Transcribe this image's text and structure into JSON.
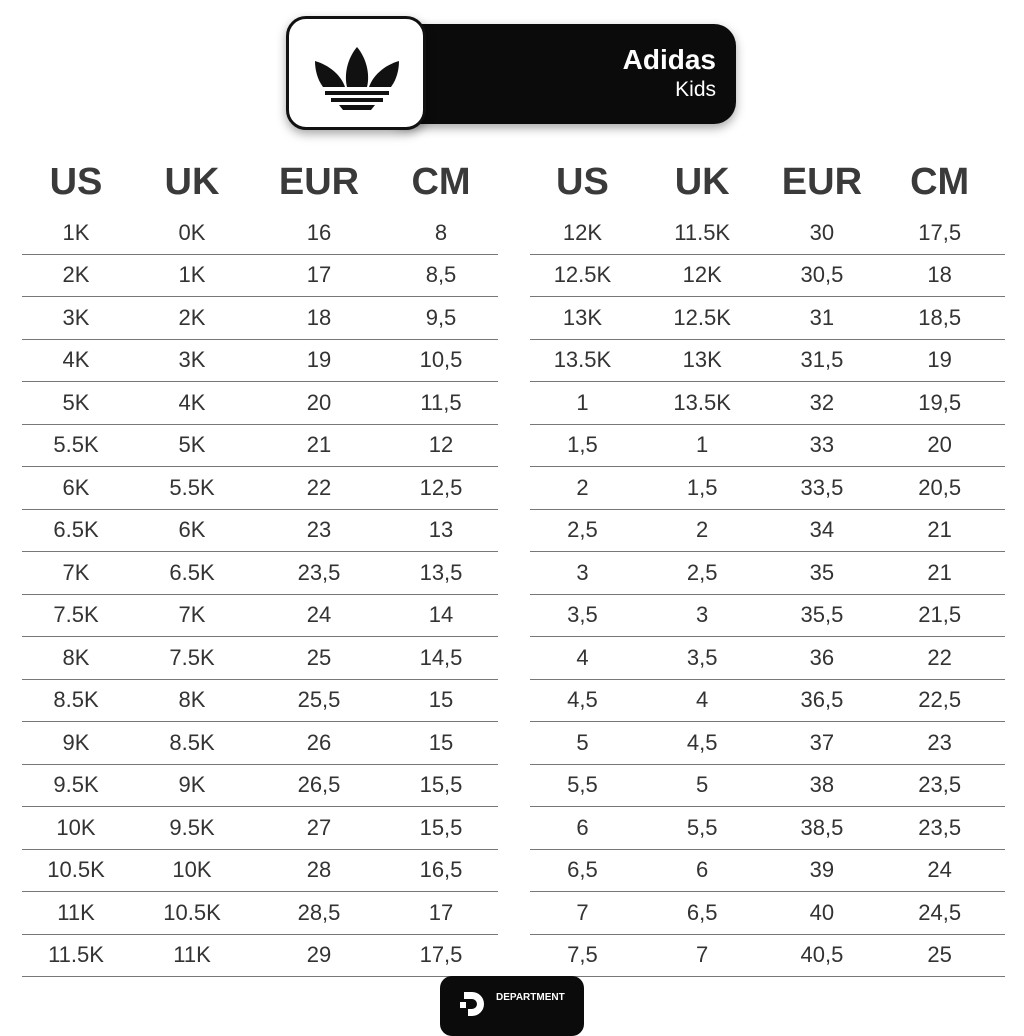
{
  "header": {
    "brand": "Adidas",
    "subtitle": "Kids",
    "logo": "adidas-trefoil-icon"
  },
  "columns": [
    "US",
    "UK",
    "EUR",
    "CM"
  ],
  "left_table": [
    [
      "1K",
      "0K",
      "16",
      "8"
    ],
    [
      "2K",
      "1K",
      "17",
      "8,5"
    ],
    [
      "3K",
      "2K",
      "18",
      "9,5"
    ],
    [
      "4K",
      "3K",
      "19",
      "10,5"
    ],
    [
      "5K",
      "4K",
      "20",
      "11,5"
    ],
    [
      "5.5K",
      "5K",
      "21",
      "12"
    ],
    [
      "6K",
      "5.5K",
      "22",
      "12,5"
    ],
    [
      "6.5K",
      "6K",
      "23",
      "13"
    ],
    [
      "7K",
      "6.5K",
      "23,5",
      "13,5"
    ],
    [
      "7.5K",
      "7K",
      "24",
      "14"
    ],
    [
      "8K",
      "7.5K",
      "25",
      "14,5"
    ],
    [
      "8.5K",
      "8K",
      "25,5",
      "15"
    ],
    [
      "9K",
      "8.5K",
      "26",
      "15"
    ],
    [
      "9.5K",
      "9K",
      "26,5",
      "15,5"
    ],
    [
      "10K",
      "9.5K",
      "27",
      "15,5"
    ],
    [
      "10.5K",
      "10K",
      "28",
      "16,5"
    ],
    [
      "11K",
      "10.5K",
      "28,5",
      "17"
    ],
    [
      "11.5K",
      "11K",
      "29",
      "17,5"
    ]
  ],
  "right_table": [
    [
      "12K",
      "11.5K",
      "30",
      "17,5"
    ],
    [
      "12.5K",
      "12K",
      "30,5",
      "18"
    ],
    [
      "13K",
      "12.5K",
      "31",
      "18,5"
    ],
    [
      "13.5K",
      "13K",
      "31,5",
      "19"
    ],
    [
      "1",
      "13.5K",
      "32",
      "19,5"
    ],
    [
      "1,5",
      "1",
      "33",
      "20"
    ],
    [
      "2",
      "1,5",
      "33,5",
      "20,5"
    ],
    [
      "2,5",
      "2",
      "34",
      "21"
    ],
    [
      "3",
      "2,5",
      "35",
      "21"
    ],
    [
      "3,5",
      "3",
      "35,5",
      "21,5"
    ],
    [
      "4",
      "3,5",
      "36",
      "22"
    ],
    [
      "4,5",
      "4",
      "36,5",
      "22,5"
    ],
    [
      "5",
      "4,5",
      "37",
      "23"
    ],
    [
      "5,5",
      "5",
      "38",
      "23,5"
    ],
    [
      "6",
      "5,5",
      "38,5",
      "23,5"
    ],
    [
      "6,5",
      "6",
      "39",
      "24"
    ],
    [
      "7",
      "6,5",
      "40",
      "24,5"
    ],
    [
      "7,5",
      "7",
      "40,5",
      "25"
    ]
  ],
  "footer": {
    "label": "DEPARTMENT",
    "logo": "department-d-icon"
  }
}
